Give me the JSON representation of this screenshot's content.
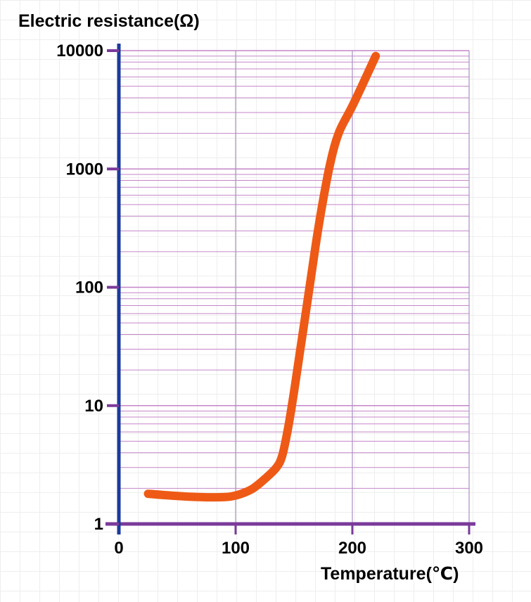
{
  "chart_data": {
    "type": "line",
    "ylabel": "Electric resistance(Ω)",
    "xlabel": "Temperature(℃)",
    "x_ticks": [
      0,
      100,
      200,
      300
    ],
    "x_tick_labels": [
      "0",
      "100",
      "200",
      "300"
    ],
    "y_ticks": [
      1,
      10,
      100,
      1000,
      10000
    ],
    "y_tick_labels": [
      "1",
      "10",
      "100",
      "1000",
      "10000"
    ],
    "xlim": [
      0,
      300
    ],
    "ylim": [
      1,
      10000
    ],
    "y_scale": "log",
    "grid": true,
    "series": [
      {
        "x": [
          25,
          40,
          60,
          80,
          95,
          105,
          115,
          125,
          135,
          140,
          145,
          150,
          155,
          160,
          165,
          170,
          175,
          180,
          185,
          190,
          200,
          210,
          220
        ],
        "y": [
          1.8,
          1.75,
          1.7,
          1.68,
          1.7,
          1.8,
          2.0,
          2.4,
          3.0,
          3.8,
          6.5,
          13,
          28,
          60,
          130,
          280,
          550,
          1000,
          1600,
          2200,
          3400,
          5500,
          9000
        ],
        "color": "#ee5a16"
      }
    ]
  },
  "colors": {
    "y_axis": "#1a3a9c",
    "x_axis": "#7a3a9a",
    "grid": "#c486c8",
    "curve": "#ee5a16"
  }
}
